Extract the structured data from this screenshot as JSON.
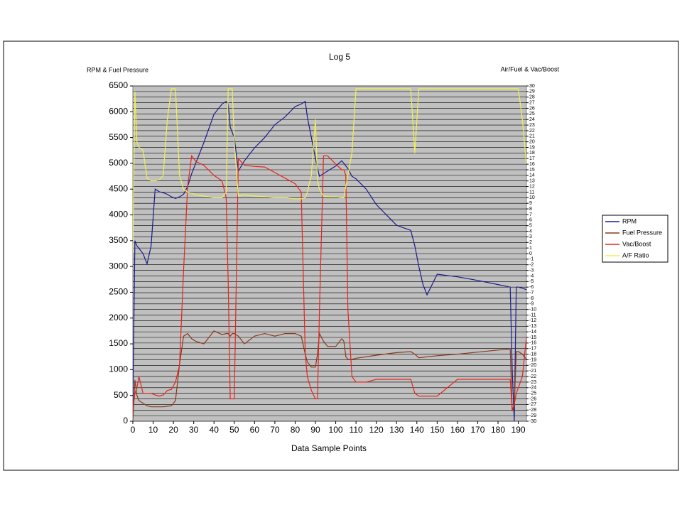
{
  "chart_data": {
    "type": "line",
    "title": "Log 5",
    "y_label": "RPM & Fuel Pressure",
    "y2_label": "Air/Fuel & Vac/Boost",
    "x_label": "Data Sample Points",
    "x": [
      0,
      1,
      2,
      3,
      5,
      7,
      9,
      11,
      13,
      15,
      17,
      19,
      21,
      23,
      25,
      27,
      29,
      31,
      35,
      40,
      44,
      46,
      47,
      48,
      49,
      50,
      52,
      55,
      60,
      65,
      70,
      75,
      80,
      83,
      85,
      86,
      88,
      90,
      91,
      92,
      94,
      96,
      100,
      103,
      104,
      105,
      106,
      108,
      110,
      115,
      120,
      130,
      137,
      139,
      141,
      143,
      145,
      150,
      160,
      170,
      180,
      186,
      187,
      188,
      189,
      190,
      192,
      194
    ],
    "xlim": [
      0,
      194
    ],
    "xticks": [
      0,
      10,
      20,
      30,
      40,
      50,
      60,
      70,
      80,
      90,
      100,
      110,
      120,
      130,
      140,
      150,
      160,
      170,
      180,
      190
    ],
    "ylim": [
      0,
      6500
    ],
    "yticks": [
      0,
      500,
      1000,
      1500,
      2000,
      2500,
      3000,
      3500,
      4000,
      4500,
      5000,
      5500,
      6000,
      6500
    ],
    "y2lim": [
      -30,
      30
    ],
    "y2ticks": [
      -30,
      -29,
      -28,
      -27,
      -26,
      -25,
      -24,
      -23,
      -22,
      -21,
      -20,
      -19,
      -18,
      -17,
      -16,
      -15,
      -14,
      -13,
      -12,
      -11,
      -10,
      -9,
      -8,
      -7,
      -6,
      -5,
      -4,
      -3,
      -2,
      -1,
      0,
      1,
      2,
      3,
      4,
      5,
      6,
      7,
      8,
      9,
      10,
      11,
      12,
      13,
      14,
      15,
      16,
      17,
      18,
      19,
      20,
      21,
      22,
      23,
      24,
      25,
      26,
      27,
      28,
      29,
      30
    ],
    "grid": true,
    "legend": "right",
    "series": [
      {
        "name": "RPM",
        "color": "#1c1c8c",
        "values": [
          300,
          3500,
          3400,
          3350,
          3250,
          3050,
          3400,
          4500,
          4450,
          4430,
          4400,
          4350,
          4320,
          4350,
          4400,
          4550,
          4800,
          5000,
          5400,
          5950,
          6150,
          6200,
          6150,
          5700,
          5600,
          5500,
          4850,
          5050,
          5300,
          5500,
          5750,
          5900,
          6100,
          6150,
          6200,
          5900,
          5500,
          5100,
          4900,
          4750,
          4800,
          4850,
          4950,
          5050,
          5000,
          4950,
          4900,
          4750,
          4700,
          4500,
          4200,
          3800,
          3700,
          3400,
          3000,
          2650,
          2450,
          2850,
          2800,
          2730,
          2650,
          2600,
          1000,
          0,
          2600,
          2600,
          2580,
          2550
        ]
      },
      {
        "name": "Fuel Pressure",
        "color": "#8b3a1a",
        "values": [
          0,
          800,
          500,
          400,
          350,
          300,
          280,
          280,
          280,
          280,
          290,
          300,
          400,
          1100,
          1650,
          1700,
          1600,
          1550,
          1500,
          1750,
          1680,
          1700,
          1700,
          1650,
          1700,
          1700,
          1650,
          1500,
          1650,
          1700,
          1650,
          1700,
          1700,
          1650,
          1300,
          1150,
          1050,
          1050,
          1300,
          1700,
          1550,
          1450,
          1450,
          1600,
          1550,
          1250,
          1200,
          1200,
          1220,
          1250,
          1280,
          1330,
          1350,
          1300,
          1230,
          1240,
          1250,
          1270,
          1300,
          1340,
          1380,
          1400,
          200,
          300,
          1350,
          1350,
          1300,
          1200
        ]
      },
      {
        "name": "Vac/Boost",
        "color": "#e8241e",
        "axis": "y2",
        "values": [
          -28,
          -25,
          -24,
          -22,
          -25,
          -25,
          -25,
          -25.3,
          -25.5,
          -25.3,
          -24.5,
          -24.3,
          -23,
          -20,
          -3,
          12,
          17.5,
          16.5,
          15.8,
          14,
          13,
          10,
          -5,
          -26,
          -26,
          -26,
          17,
          15.8,
          15.6,
          15.5,
          14.5,
          13.5,
          12.5,
          11,
          -18,
          -22,
          -24.5,
          -26,
          -26,
          -10,
          17.5,
          17.5,
          16,
          15,
          15,
          14,
          -10,
          -22,
          -23,
          -23,
          -22.5,
          -22.5,
          -22.5,
          -25,
          -25.5,
          -25.5,
          -25.5,
          -25.5,
          -22.5,
          -22.5,
          -22.5,
          -22.5,
          -28,
          -27,
          -25,
          -24,
          -22,
          -15
        ]
      },
      {
        "name": "A/F Ratio",
        "color": "#f0f050",
        "axis": "y2",
        "values": [
          0,
          29,
          20,
          19,
          18.5,
          13.5,
          13,
          13,
          13.2,
          14,
          24,
          29.5,
          29.5,
          14,
          11.5,
          11,
          10.8,
          10.5,
          10.3,
          10,
          10,
          11,
          29.5,
          29.5,
          29.5,
          20,
          10.3,
          10.5,
          10.3,
          10.2,
          10,
          10,
          9.8,
          9.8,
          10,
          11,
          14,
          24,
          13,
          11.5,
          10.3,
          10.2,
          10.2,
          10,
          10,
          12,
          14,
          18,
          29.5,
          29.5,
          29.5,
          29.5,
          29.5,
          18,
          29.5,
          29.5,
          29.5,
          29.5,
          29.5,
          29.5,
          29.5,
          29.5,
          29.5,
          29.5,
          29.5,
          29.5,
          24,
          16
        ]
      }
    ]
  }
}
